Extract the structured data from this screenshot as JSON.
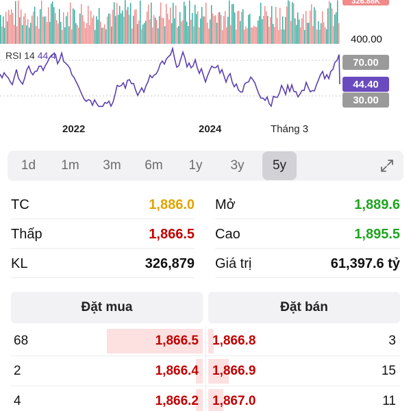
{
  "chart": {
    "rsi_label": "RSI 14",
    "rsi_value": "44.4",
    "volume_axis": "400.00",
    "top_tag": "326.88K",
    "tag_70": "70.00",
    "tag_current": "44.40",
    "tag_30": "30.00",
    "x_labels": [
      "2022",
      "2024",
      "Tháng 3"
    ],
    "colors": {
      "rsi_line": "#5b3fb0",
      "vol_up": "#2aa89a",
      "vol_down": "#ef8585"
    }
  },
  "ranges": {
    "items": [
      "1d",
      "1m",
      "3m",
      "6m",
      "1y",
      "3y",
      "5y"
    ],
    "active": "5y",
    "expand_icon": "expand-arrows-icon"
  },
  "stats": {
    "tc": {
      "label": "TC",
      "value": "1,886.0"
    },
    "low": {
      "label": "Thấp",
      "value": "1,866.5"
    },
    "kl": {
      "label": "KL",
      "value": "326,879"
    },
    "open": {
      "label": "Mở",
      "value": "1,889.6"
    },
    "high": {
      "label": "Cao",
      "value": "1,895.5"
    },
    "value": {
      "label": "Giá trị",
      "value": "61,397.6 tỷ"
    }
  },
  "order_book": {
    "buy_header": "Đặt mua",
    "sell_header": "Đặt bán",
    "rows": [
      {
        "bid_qty": "68",
        "bid_price": "1,866.5",
        "ask_price": "1,866.8",
        "ask_qty": "3"
      },
      {
        "bid_qty": "2",
        "bid_price": "1,866.4",
        "ask_price": "1,866.9",
        "ask_qty": "15"
      },
      {
        "bid_qty": "4",
        "bid_price": "1,866.2",
        "ask_price": "1,867.0",
        "ask_qty": "11"
      }
    ]
  }
}
